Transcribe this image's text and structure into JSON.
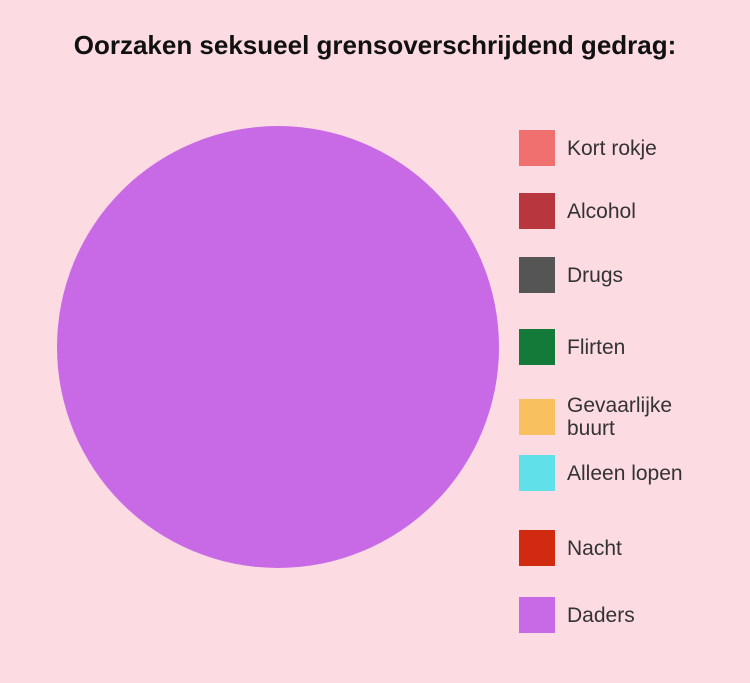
{
  "chart_data": {
    "type": "pie",
    "title": "Oorzaken seksueel grensoverschrijdend gedrag:",
    "categories": [
      "Kort rokje",
      "Alcohol",
      "Drugs",
      "Flirten",
      "Gevaarlijke buurt",
      "Alleen lopen",
      "Nacht",
      "Daders"
    ],
    "values": [
      0,
      0,
      0,
      0,
      0,
      0,
      0,
      100
    ],
    "colors": [
      "#f07070",
      "#b8373f",
      "#555555",
      "#137a3a",
      "#f9c060",
      "#60e0e8",
      "#d02a10",
      "#c86ae6"
    ]
  }
}
